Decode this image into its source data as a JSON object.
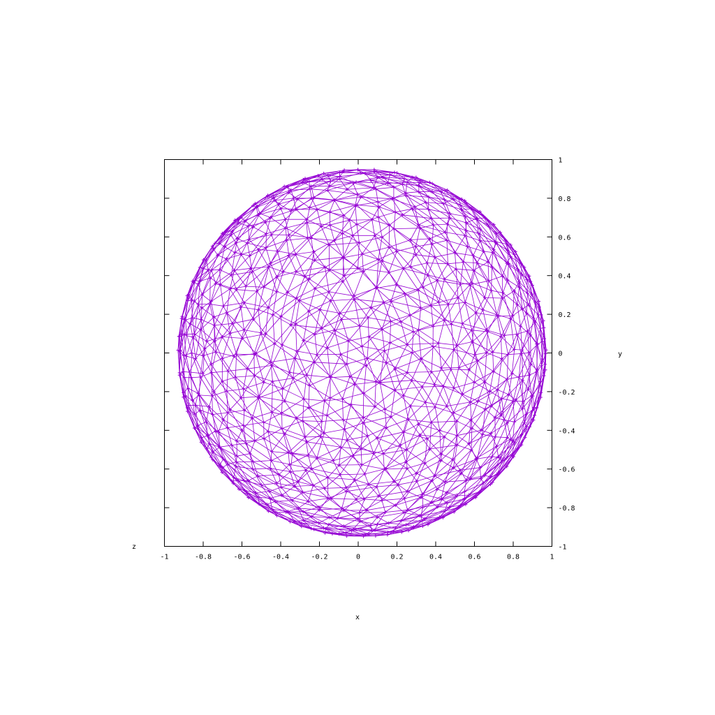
{
  "chart_data": {
    "type": "scatter",
    "title": "",
    "xlabel": "x",
    "ylabel": "y",
    "zlabel": "z",
    "xlim": [
      -1,
      1
    ],
    "ylim": [
      -1,
      1
    ],
    "x_ticks": [
      "-1",
      "-0.8",
      "-0.6",
      "-0.4",
      "-0.2",
      "0",
      "0.2",
      "0.4",
      "0.6",
      "0.8",
      "1"
    ],
    "y_ticks": [
      "-1",
      "-0.8",
      "-0.6",
      "-0.4",
      "-0.2",
      "0",
      "0.2",
      "0.4",
      "0.6",
      "0.8",
      "1"
    ],
    "grid": false,
    "legend": "none",
    "view": "sphere surface mesh viewed along z axis",
    "sphere": {
      "radius": 0.95,
      "center": [
        0.02,
        0.0
      ],
      "mesh_points": 900
    },
    "series": [
      {
        "color": "#9400d3",
        "marker": "plus",
        "style": "triangulated-mesh"
      }
    ]
  }
}
